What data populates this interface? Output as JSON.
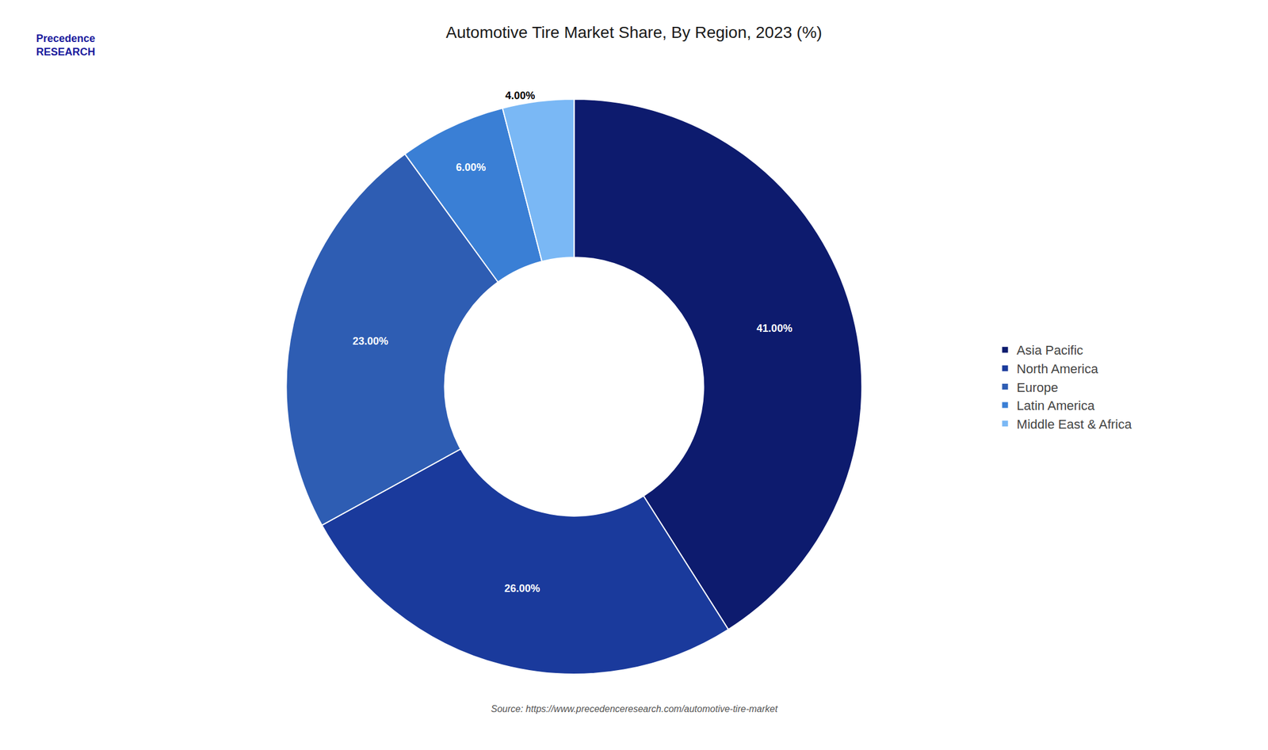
{
  "chart_data": {
    "type": "donut",
    "title": "Automotive Tire Market Share, By Region, 2023 (%)",
    "categories": [
      "Asia Pacific",
      "North America",
      "Europe",
      "Latin America",
      "Middle East & Africa"
    ],
    "values": [
      41.0,
      26.0,
      23.0,
      6.0,
      4.0
    ],
    "value_labels": [
      "41.00%",
      "26.00%",
      "23.00%",
      "6.00%",
      "4.00%"
    ],
    "colors": [
      "#0d1b6e",
      "#1a3a9c",
      "#2e5db3",
      "#3a7fd5",
      "#7ab8f5"
    ],
    "data_labels": true,
    "legend": "right",
    "annotations": [
      "Precedence\nRESEARCH",
      "Source: https://www.precedenceresearch.com/automotive-tire-market"
    ]
  }
}
